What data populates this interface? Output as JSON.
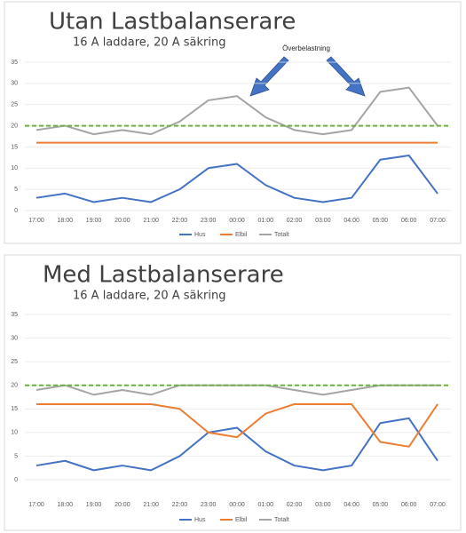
{
  "chart_data": [
    {
      "type": "line",
      "title": "Utan Lastbalanserare",
      "subtitle": "16 A laddare, 20 A säkring",
      "categories": [
        "17:00",
        "18:00",
        "19:00",
        "20:00",
        "21:00",
        "22:00",
        "23:00",
        "00:00",
        "01:00",
        "02:00",
        "03:00",
        "04:00",
        "05:00",
        "06:00",
        "07:00"
      ],
      "series": [
        {
          "name": "Hus",
          "color": "#4472c4",
          "values": [
            3,
            4,
            2,
            3,
            2,
            5,
            10,
            11,
            6,
            3,
            2,
            3,
            12,
            13,
            4
          ]
        },
        {
          "name": "Elbil",
          "color": "#ed7d31",
          "values": [
            16,
            16,
            16,
            16,
            16,
            16,
            16,
            16,
            16,
            16,
            16,
            16,
            16,
            16,
            16
          ]
        },
        {
          "name": "Totalt",
          "color": "#a5a5a5",
          "values": [
            19,
            20,
            18,
            19,
            18,
            21,
            26,
            27,
            22,
            19,
            18,
            19,
            28,
            29,
            20
          ]
        }
      ],
      "reference_line": {
        "value": 20,
        "color": "#70ad47"
      },
      "annotation": "Överbelastning",
      "ylim": [
        0,
        35
      ],
      "yticks": [
        0,
        5,
        10,
        15,
        20,
        25,
        30,
        35
      ],
      "grid": true,
      "legend": "bottom"
    },
    {
      "type": "line",
      "title": "Med Lastbalanserare",
      "subtitle": "16 A laddare, 20 A säkring",
      "categories": [
        "17:00",
        "18:00",
        "19:00",
        "20:00",
        "21:00",
        "22:00",
        "23:00",
        "00:00",
        "01:00",
        "02:00",
        "03:00",
        "04:00",
        "05:00",
        "06:00",
        "07:00"
      ],
      "series": [
        {
          "name": "Hus",
          "color": "#4472c4",
          "values": [
            3,
            4,
            2,
            3,
            2,
            5,
            10,
            11,
            6,
            3,
            2,
            3,
            12,
            13,
            4
          ]
        },
        {
          "name": "Elbil",
          "color": "#ed7d31",
          "values": [
            16,
            16,
            16,
            16,
            16,
            15,
            10,
            9,
            14,
            16,
            16,
            16,
            8,
            7,
            16
          ]
        },
        {
          "name": "Totalt",
          "color": "#a5a5a5",
          "values": [
            19,
            20,
            18,
            19,
            18,
            20,
            20,
            20,
            20,
            19,
            18,
            19,
            20,
            20,
            20
          ]
        }
      ],
      "reference_line": {
        "value": 20,
        "color": "#70ad47"
      },
      "ylim": [
        0,
        35
      ],
      "yticks": [
        0,
        5,
        10,
        15,
        20,
        25,
        30,
        35
      ],
      "grid": true,
      "legend": "bottom"
    }
  ]
}
